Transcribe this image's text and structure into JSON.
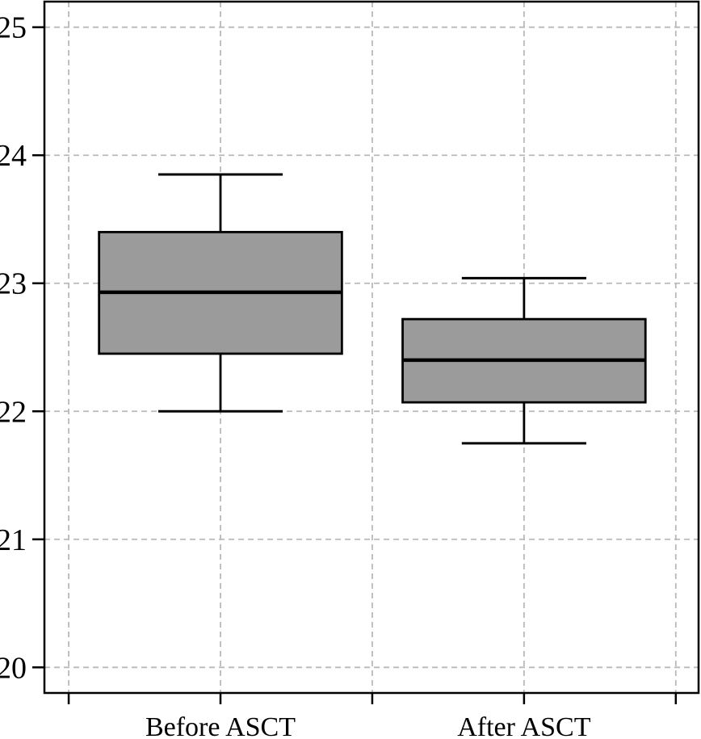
{
  "figure": {
    "background": "#ffffff"
  },
  "chart_data": {
    "type": "boxplot",
    "title": "",
    "xlabel": "",
    "ylabel": "",
    "categories": [
      "Before ASCT",
      "After ASCT"
    ],
    "boxes": [
      {
        "label": "Before ASCT",
        "position": 1,
        "min": 22.0,
        "q1": 22.45,
        "median": 22.93,
        "q3": 23.4,
        "max": 23.85
      },
      {
        "label": "After ASCT",
        "position": 2,
        "min": 21.75,
        "q1": 22.07,
        "median": 22.4,
        "q3": 22.72,
        "max": 23.04
      }
    ],
    "xlim": [
      0.42,
      2.575
    ],
    "ylim": [
      19.8,
      25.2
    ],
    "yticks": [
      25,
      24,
      23,
      22,
      21,
      20
    ],
    "ytick_labels": [
      "25",
      "24",
      "23",
      "22",
      "21",
      "20"
    ],
    "xticks": [
      0.5,
      1,
      1.5,
      2,
      2.5
    ],
    "box_width": 0.8,
    "cap_width": 0.41,
    "grid": true,
    "grid_style": "dashed",
    "legend": "none",
    "colors": {
      "box_fill": "#9b9b9b",
      "box_stroke": "#000000",
      "median": "#000000",
      "whisker": "#000000",
      "grid": "#b9b9b9",
      "axis": "#000000",
      "background": "#ffffff",
      "text": "#000000"
    }
  }
}
